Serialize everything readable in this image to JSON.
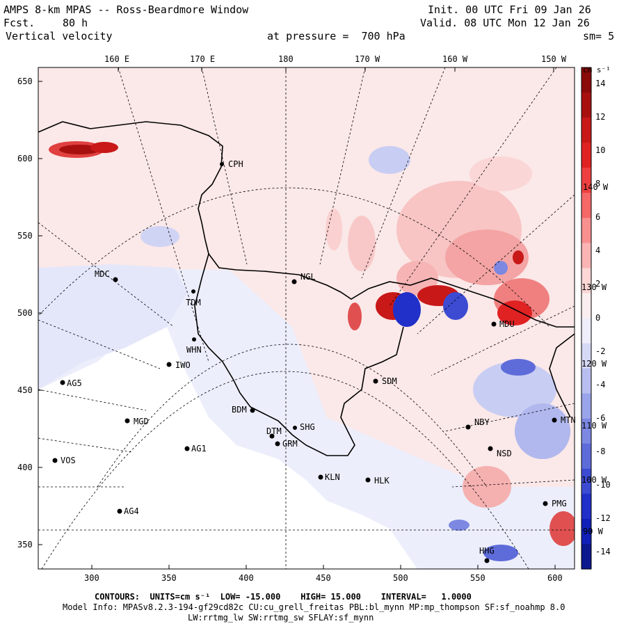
{
  "header": {
    "title": "AMPS 8-km MPAS -- Ross-Beardmore Window",
    "fcst_label": "Fcst.",
    "fcst_value": "80 h",
    "field": "Vertical velocity",
    "level": "at pressure =  700 hPa",
    "init": "Init. 00 UTC Fri 09 Jan 26",
    "valid": "Valid. 08 UTC Mon 12 Jan 26",
    "smoothing": "sm= 5"
  },
  "axes": {
    "top_lon": [
      "160 E",
      "170 E",
      "180",
      "170 W",
      "160 W",
      "150 W"
    ],
    "left_y": [
      "650",
      "600",
      "550",
      "500",
      "450",
      "400",
      "350"
    ],
    "bottom_x": [
      "300",
      "350",
      "400",
      "450",
      "500",
      "550",
      "600"
    ]
  },
  "colorbar": {
    "units": "cm s⁻¹",
    "ticks": [
      "14",
      "12",
      "10",
      "8",
      "6",
      "4",
      "2",
      "0",
      "-2",
      "-4",
      "-6",
      "-8",
      "-10",
      "-12",
      "-14"
    ],
    "colors": [
      "#8b0a0a",
      "#a81010",
      "#c81818",
      "#e02222",
      "#ee4040",
      "#f56868",
      "#f99090",
      "#fbb4b4",
      "#fdd6d6",
      "#fbeeee",
      "#eeeefb",
      "#d6d9f6",
      "#b8bef0",
      "#9aa4ea",
      "#7c88e2",
      "#5e6cda",
      "#3c4bd2",
      "#2030c8",
      "#1020b8",
      "#0c188e"
    ]
  },
  "stations": [
    {
      "code": "CPH"
    },
    {
      "code": "NGL"
    },
    {
      "code": "MDC"
    },
    {
      "code": "TDM"
    },
    {
      "code": "WHN"
    },
    {
      "code": "IWO"
    },
    {
      "code": "AG5"
    },
    {
      "code": "MGD"
    },
    {
      "code": "AG1"
    },
    {
      "code": "BDM"
    },
    {
      "code": "SHG"
    },
    {
      "code": "DTM"
    },
    {
      "code": "GRM"
    },
    {
      "code": "VOS"
    },
    {
      "code": "AG4"
    },
    {
      "code": "KLN"
    },
    {
      "code": "HLK"
    },
    {
      "code": "SDM"
    },
    {
      "code": "MDU"
    },
    {
      "code": "NBY"
    },
    {
      "code": "NSD"
    },
    {
      "code": "MTN"
    },
    {
      "code": "PMG"
    },
    {
      "code": "HHG"
    }
  ],
  "meridian_labels": [
    "140 W",
    "130 W",
    "120 W",
    "110 W",
    "100 W",
    "90 W"
  ],
  "footer": {
    "contours_label": "CONTOURS:  UNITS=cm s⁻¹  LOW= -15.000    HIGH= 15.000    INTERVAL=   1.0000",
    "model_info": "Model Info: MPASv8.2.3-194-gf29cd82c CU:cu_grell_freitas PBL:bl_mynn MP:mp_thompson SF:sf_noahmp 8.0",
    "physics": "LW:rrtmg_lw SW:rrtmg_sw SFLAY:sf_mynn"
  }
}
